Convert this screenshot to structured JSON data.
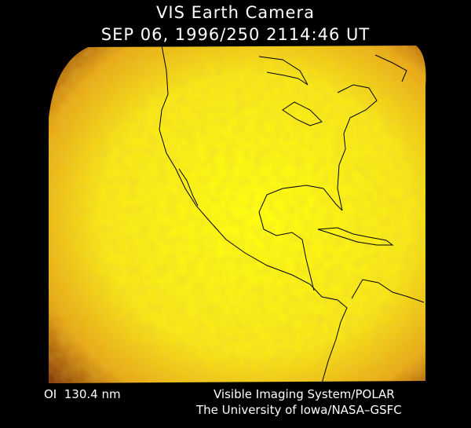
{
  "header": {
    "title": "VIS Earth Camera",
    "timestamp": "SEP 06, 1996/250 2114:46 UT"
  },
  "footer": {
    "filter": "OI  130.4 nm",
    "credits": [
      "Visible Imaging System/POLAR",
      "The University of Iowa/NASA–GSFC"
    ]
  }
}
